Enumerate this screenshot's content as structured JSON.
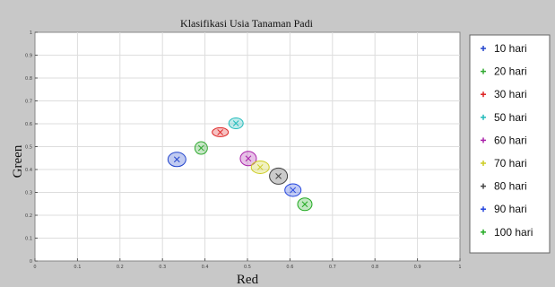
{
  "chart_data": {
    "type": "scatter",
    "title": "Klasifikasi Usia Tanaman Padi",
    "xlabel": "Red",
    "ylabel": "Green",
    "xlim": [
      0,
      1
    ],
    "ylim": [
      0,
      1
    ],
    "xticks": [
      "0",
      "0.1",
      "0.2",
      "0.3",
      "0.4",
      "0.5",
      "0.6",
      "0.7",
      "0.8",
      "0.9",
      "1"
    ],
    "yticks": [
      "0",
      "0.1",
      "0.2",
      "0.3",
      "0.4",
      "0.5",
      "0.6",
      "0.7",
      "0.8",
      "0.9",
      "1"
    ],
    "grid": true,
    "legend_position": "right",
    "series": [
      {
        "name": "10 hari",
        "color": "#2244cc",
        "points": [
          {
            "x": 0.334,
            "y": 0.444
          }
        ]
      },
      {
        "name": "20 hari",
        "color": "#33aa33",
        "points": [
          {
            "x": 0.391,
            "y": 0.494
          }
        ]
      },
      {
        "name": "30 hari",
        "color": "#dd2222",
        "points": [
          {
            "x": 0.436,
            "y": 0.563
          }
        ]
      },
      {
        "name": "50 hari",
        "color": "#22bbbb",
        "points": [
          {
            "x": 0.473,
            "y": 0.602
          }
        ]
      },
      {
        "name": "60 hari",
        "color": "#aa22aa",
        "points": [
          {
            "x": 0.502,
            "y": 0.448
          }
        ]
      },
      {
        "name": "70 hari",
        "color": "#cccc22",
        "points": [
          {
            "x": 0.53,
            "y": 0.41
          }
        ]
      },
      {
        "name": "80 hari",
        "color": "#444444",
        "points": [
          {
            "x": 0.573,
            "y": 0.371
          }
        ]
      },
      {
        "name": "90 hari",
        "color": "#2244dd",
        "points": [
          {
            "x": 0.607,
            "y": 0.31
          }
        ]
      },
      {
        "name": "100 hari",
        "color": "#22aa22",
        "points": [
          {
            "x": 0.635,
            "y": 0.248
          }
        ]
      }
    ]
  }
}
